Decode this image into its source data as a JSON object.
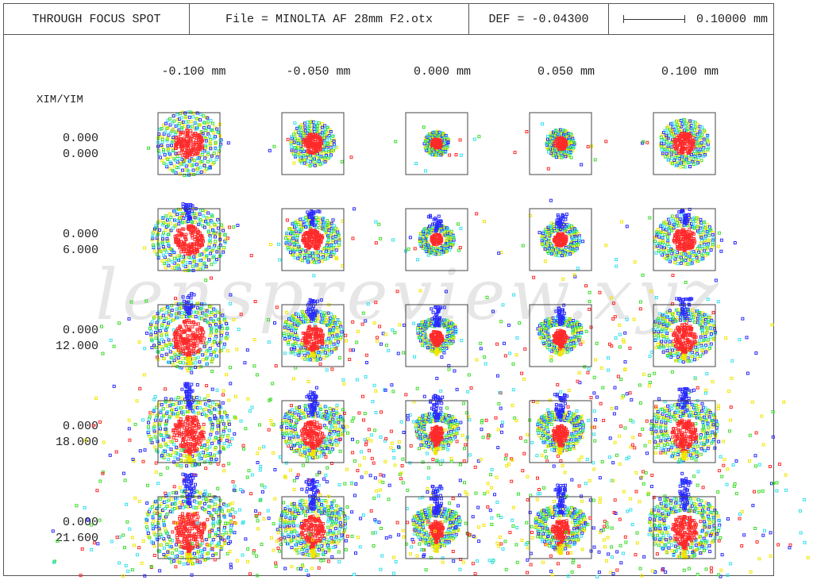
{
  "header": {
    "title": "THROUGH FOCUS SPOT",
    "file": "File = MINOLTA AF 28mm F2.otx",
    "def": "DEF = -0.04300",
    "scale": "0.10000 mm"
  },
  "axis_label": "XIM/YIM",
  "columns": [
    "-0.100  mm",
    "-0.050  mm",
    "0.000  mm",
    "0.050  mm",
    "0.100  mm"
  ],
  "rows": [
    {
      "x": "0.000",
      "y": "0.000"
    },
    {
      "x": "0.000",
      "y": "6.000"
    },
    {
      "x": "0.000",
      "y": "12.000"
    },
    {
      "x": "0.000",
      "y": "18.000"
    },
    {
      "x": "0.000",
      "y": "21.600"
    }
  ],
  "watermark": "lenspreview.xyz",
  "colors": {
    "red": "#ff2a2a",
    "yellow": "#f2e600",
    "green": "#3ddc2a",
    "cyan": "#35e0ee",
    "blue": "#2a2aff",
    "box": "#444444"
  }
}
